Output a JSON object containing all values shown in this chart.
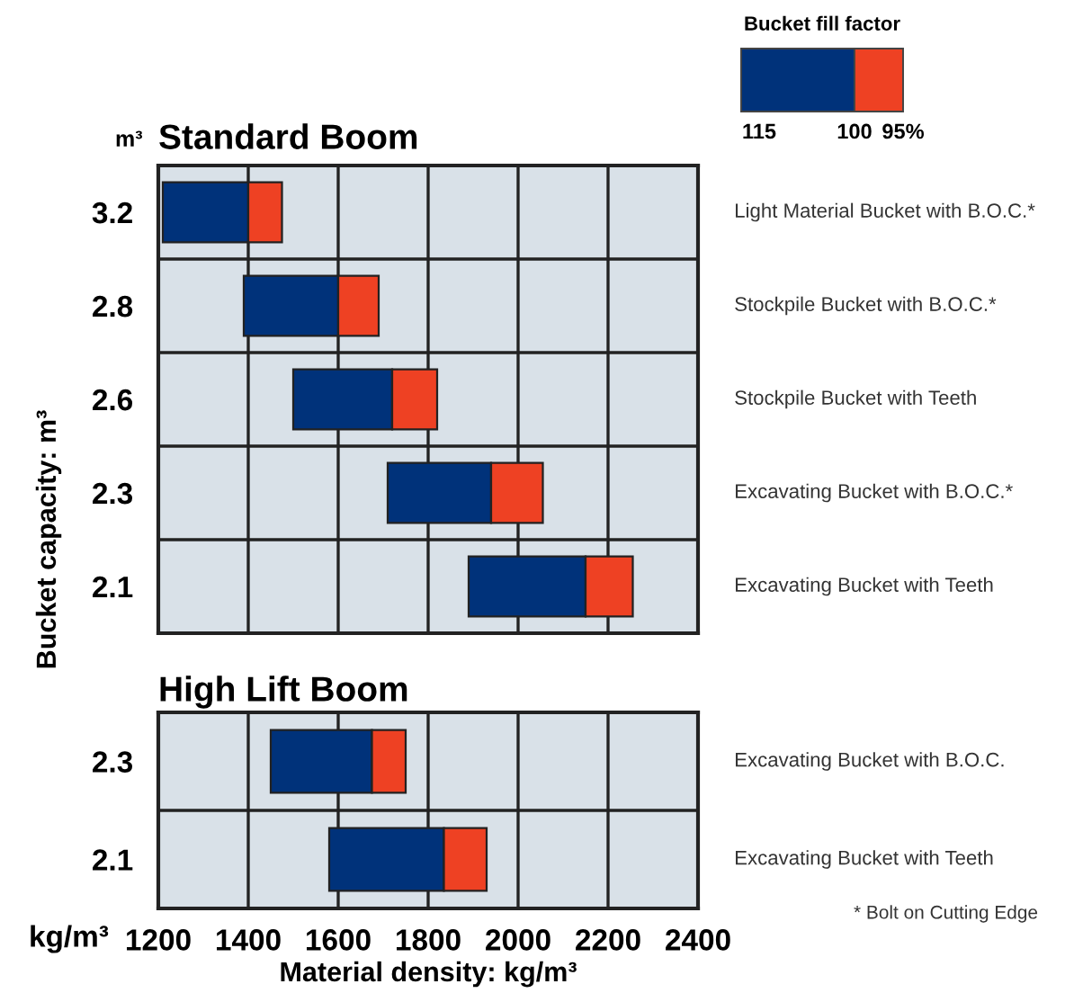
{
  "chart_data": [
    {
      "type": "bar",
      "orientation": "horizontal",
      "title": "Standard Boom",
      "ylabel": "Bucket capacity: m³",
      "legend_title": "Bucket fill factor",
      "grid": true,
      "tick_labels": "y",
      "categories": [
        "3.2",
        "2.8",
        "2.6",
        "2.3",
        "2.1"
      ],
      "series": [
        {
          "color": "#00327a",
          "base": [
            1210,
            1390,
            1500,
            1710,
            1890
          ],
          "values": [
            190,
            210,
            220,
            230,
            260
          ]
        },
        {
          "color": "#ee4123",
          "base": [
            1400,
            1600,
            1720,
            1940,
            2150
          ],
          "values": [
            75,
            90,
            100,
            115,
            105
          ]
        }
      ],
      "xlim": [
        1200,
        2400
      ],
      "xticks": [
        1200,
        1400,
        1600,
        1800,
        2000,
        2200,
        2400
      ],
      "annotations": [
        "m³",
        "115",
        "100",
        "95%",
        "Light Material Bucket with B.O.C.*",
        "Stockpile Bucket with B.O.C.*",
        "Stockpile Bucket with Teeth",
        "Excavating Bucket with B.O.C.*",
        "Excavating Bucket with Teeth"
      ]
    },
    {
      "type": "bar",
      "orientation": "horizontal",
      "title": "High Lift Boom",
      "xlabel": "Material density: kg/m³",
      "grid": true,
      "categories": [
        "2.3",
        "2.1"
      ],
      "series": [
        {
          "color": "#00327a",
          "base": [
            1450,
            1580
          ],
          "values": [
            225,
            255
          ]
        },
        {
          "color": "#ee4123",
          "base": [
            1675,
            1835
          ],
          "values": [
            75,
            95
          ]
        }
      ],
      "xlim": [
        1200,
        2400
      ],
      "xticks": [
        1200,
        1400,
        1600,
        1800,
        2000,
        2200,
        2400
      ],
      "annotations": [
        "kg/m³",
        "* Bolt on Cutting Edge",
        "Excavating Bucket with B.O.C.",
        "Excavating Bucket with Teeth"
      ]
    }
  ]
}
